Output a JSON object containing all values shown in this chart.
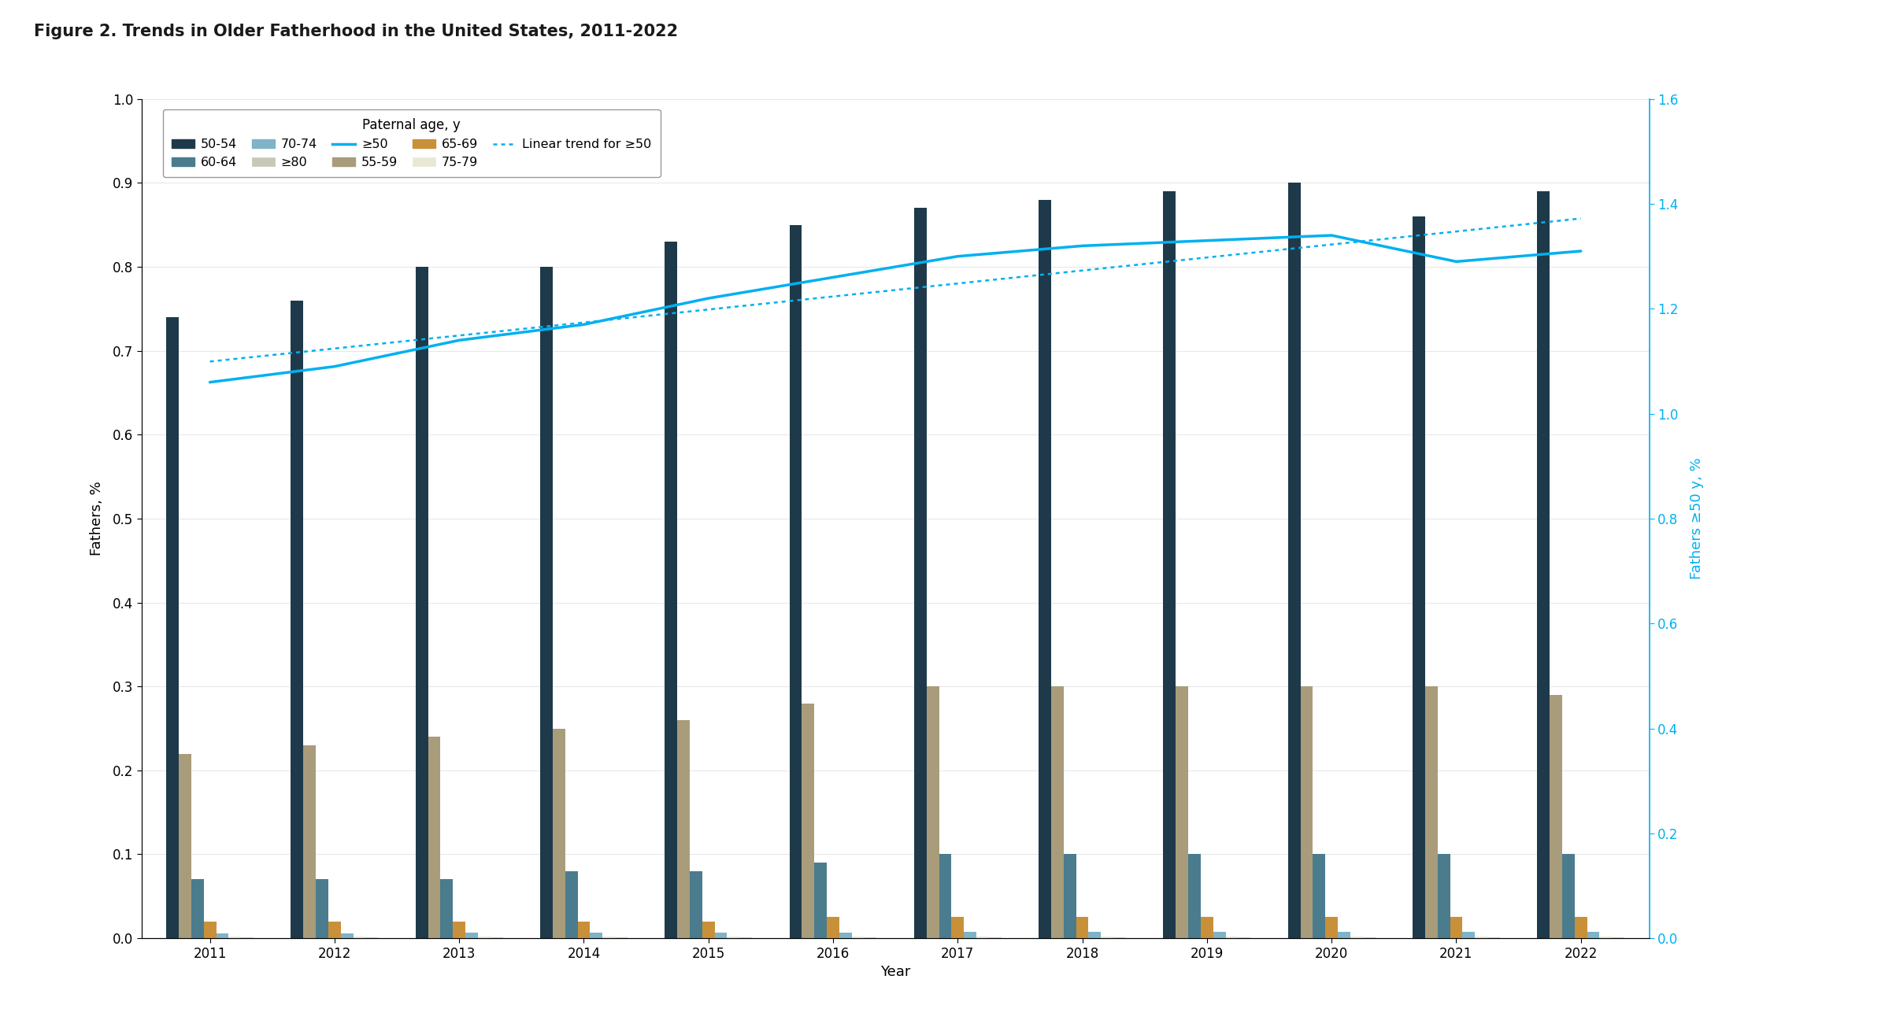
{
  "title": "Figure 2. Trends in Older Fatherhood in the United States, 2011-2022",
  "years": [
    2011,
    2012,
    2013,
    2014,
    2015,
    2016,
    2017,
    2018,
    2019,
    2020,
    2021,
    2022
  ],
  "age_50_54": [
    0.74,
    0.76,
    0.8,
    0.8,
    0.83,
    0.85,
    0.87,
    0.88,
    0.89,
    0.9,
    0.86,
    0.89
  ],
  "age_55_59": [
    0.22,
    0.23,
    0.24,
    0.25,
    0.26,
    0.28,
    0.3,
    0.3,
    0.3,
    0.3,
    0.3,
    0.29
  ],
  "age_60_64": [
    0.07,
    0.07,
    0.07,
    0.08,
    0.08,
    0.09,
    0.1,
    0.1,
    0.1,
    0.1,
    0.1,
    0.1
  ],
  "age_65_69": [
    0.02,
    0.02,
    0.02,
    0.02,
    0.02,
    0.025,
    0.025,
    0.025,
    0.025,
    0.025,
    0.025,
    0.025
  ],
  "age_70_74": [
    0.006,
    0.006,
    0.007,
    0.007,
    0.007,
    0.007,
    0.008,
    0.008,
    0.008,
    0.008,
    0.008,
    0.008
  ],
  "age_75_79": [
    0.002,
    0.002,
    0.002,
    0.002,
    0.002,
    0.002,
    0.002,
    0.002,
    0.002,
    0.002,
    0.002,
    0.002
  ],
  "age_ge80": [
    0.001,
    0.001,
    0.001,
    0.001,
    0.001,
    0.001,
    0.001,
    0.001,
    0.001,
    0.001,
    0.001,
    0.001
  ],
  "age_ge50_line": [
    1.06,
    1.09,
    1.14,
    1.17,
    1.22,
    1.26,
    1.3,
    1.32,
    1.33,
    1.34,
    1.29,
    1.31
  ],
  "color_50_54": "#1e3a4a",
  "color_55_59": "#a89c7b",
  "color_60_64": "#4a7c8e",
  "color_65_69": "#c9903a",
  "color_70_74": "#7fb3c8",
  "color_75_79": "#e8e8d5",
  "color_ge80": "#c8c8b8",
  "color_line": "#00b0f0",
  "color_trend": "#00b0f0",
  "xlabel": "Year",
  "ylabel_left": "Fathers, %",
  "ylabel_right": "Fathers ≥50 y, %",
  "ylim_left": [
    0,
    1.0
  ],
  "ylim_right": [
    0,
    1.6
  ],
  "yticks_left": [
    0.0,
    0.1,
    0.2,
    0.3,
    0.4,
    0.5,
    0.6,
    0.7,
    0.8,
    0.9,
    1.0
  ],
  "yticks_right": [
    0.0,
    0.2,
    0.4,
    0.6,
    0.8,
    1.0,
    1.2,
    1.4,
    1.6
  ],
  "title_bar_color": "#c0335e",
  "separator_color": "#1a1a1a",
  "background_color": "#ffffff",
  "legend_title": "Paternal age, y",
  "legend_row1": [
    "50-54",
    "60-64",
    "70-74",
    "≥80",
    "≥50"
  ],
  "legend_row2": [
    "55-59",
    "65-69",
    "75-79",
    "Linear trend for ≥50"
  ]
}
